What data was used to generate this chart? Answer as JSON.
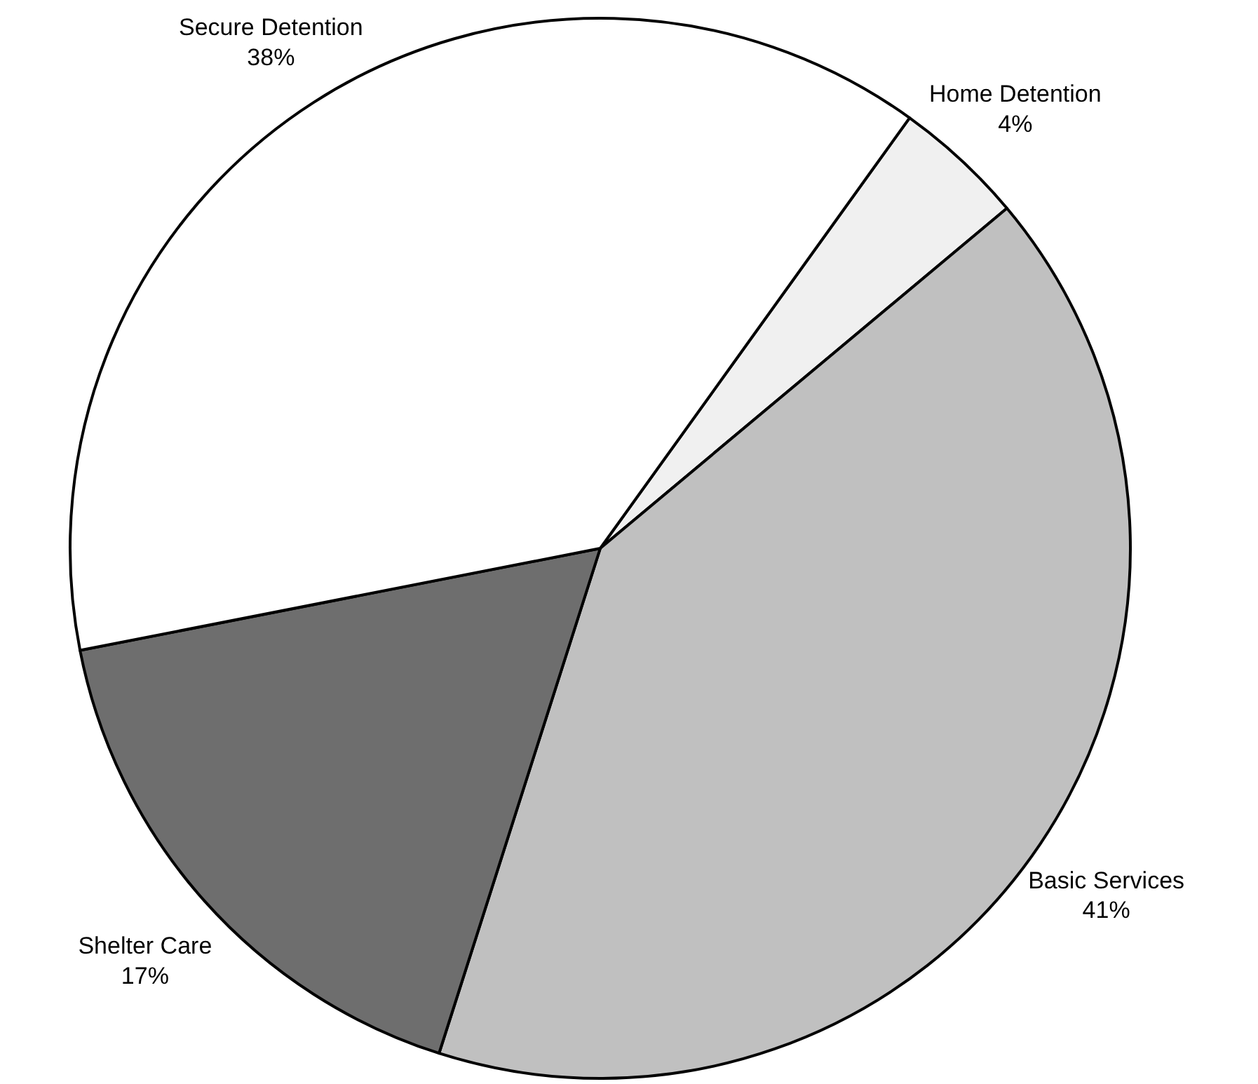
{
  "chart_data": {
    "type": "pie",
    "categories": [
      "Home Detention",
      "Basic Services",
      "Shelter Care",
      "Secure Detention"
    ],
    "values": [
      4,
      41,
      17,
      38
    ],
    "value_labels": [
      "4%",
      "41%",
      "17%",
      "38%"
    ],
    "colors": [
      "#f0f0f0",
      "#c0c0c0",
      "#6e6e6e",
      "#ffffff"
    ]
  }
}
